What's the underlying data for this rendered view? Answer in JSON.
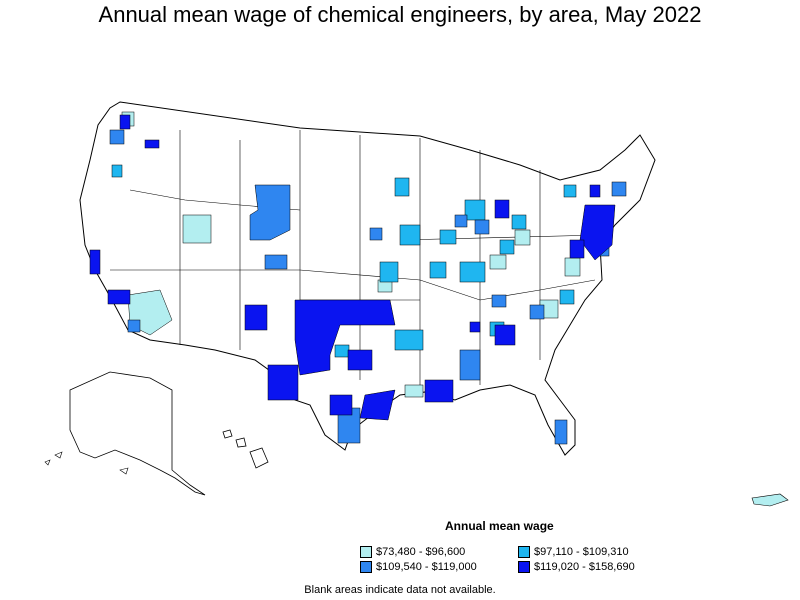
{
  "title": "Annual mean wage of chemical engineers, by area, May 2022",
  "legend": {
    "title": "Annual mean wage",
    "items": [
      {
        "label": "$73,480 - $96,600",
        "color": "#b3eef0"
      },
      {
        "label": "$97,110 - $109,310",
        "color": "#1fb6f0"
      },
      {
        "label": "$109,540 - $119,000",
        "color": "#2f86f0"
      },
      {
        "label": "$119,020 - $158,690",
        "color": "#0a14f0"
      }
    ]
  },
  "note": "Blank areas indicate data not available."
}
